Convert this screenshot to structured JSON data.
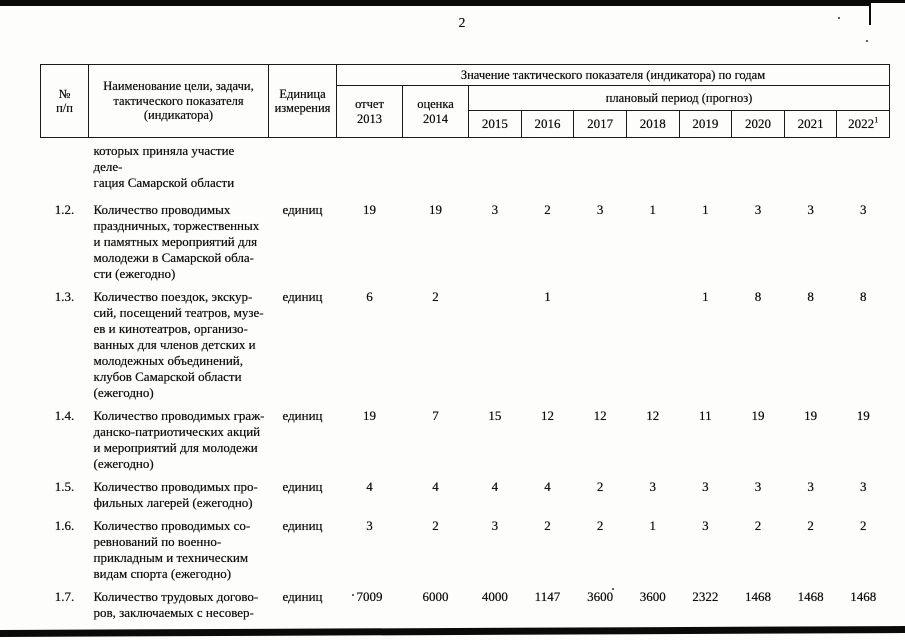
{
  "page": {
    "number": "2"
  },
  "table": {
    "header": {
      "num_lines": [
        "№",
        "п/п"
      ],
      "name_lines": [
        "Наименование цели, задачи,",
        "тактического показателя",
        "(индикатора)"
      ],
      "unit_lines": [
        "Единица",
        "измерения"
      ],
      "group": "Значение тактического показателя (индикатора) по годам",
      "report_lines": [
        "отчет",
        "2013"
      ],
      "estimate_lines": [
        "оценка",
        "2014"
      ],
      "plan_group": "плановый период (прогноз)",
      "years": [
        "2015",
        "2016",
        "2017",
        "2018",
        "2019",
        "2020",
        "2021",
        "2022"
      ],
      "last_year_footnote": "1"
    },
    "rows": [
      {
        "num": "",
        "name_lines": [
          "которых приняла участие деле-",
          "гация Самарской области"
        ],
        "unit": "",
        "values": [
          "",
          "",
          "",
          "",
          "",
          "",
          "",
          "",
          "",
          ""
        ]
      },
      {
        "num": "1.2.",
        "name_lines": [
          "Количество проводимых",
          "праздничных, торжественных",
          "и памятных мероприятий для",
          "молодежи в Самарской обла-",
          "сти (ежегодно)"
        ],
        "unit": "единиц",
        "values": [
          "19",
          "19",
          "3",
          "2",
          "3",
          "1",
          "1",
          "3",
          "3",
          "3"
        ]
      },
      {
        "num": "1.3.",
        "name_lines": [
          "Количество поездок, экскур-",
          "сий, посещений театров, музе-",
          "ев и кинотеатров, организо-",
          "ванных для членов детских и",
          "молодежных объединений,",
          "клубов Самарской области",
          "(ежегодно)"
        ],
        "unit": "единиц",
        "values": [
          "6",
          "2",
          "",
          "1",
          "",
          "",
          "1",
          "8",
          "8",
          "8"
        ]
      },
      {
        "num": "1.4.",
        "name_lines": [
          "Количество проводимых граж-",
          "данско-патриотических акций",
          "и мероприятий для молодежи",
          "(ежегодно)"
        ],
        "unit": "единиц",
        "values": [
          "19",
          "7",
          "15",
          "12",
          "12",
          "12",
          "11",
          "19",
          "19",
          "19"
        ]
      },
      {
        "num": "1.5.",
        "name_lines": [
          "Количество проводимых про-",
          "фильных лагерей (ежегодно)"
        ],
        "unit": "единиц",
        "values": [
          "4",
          "4",
          "4",
          "4",
          "2",
          "3",
          "3",
          "3",
          "3",
          "3"
        ]
      },
      {
        "num": "1.6.",
        "name_lines": [
          "Количество проводимых со-",
          "ревнований по военно-",
          "прикладным и техническим",
          "видам спорта (ежегодно)"
        ],
        "unit": "единиц",
        "values": [
          "3",
          "2",
          "3",
          "2",
          "2",
          "1",
          "3",
          "2",
          "2",
          "2"
        ]
      },
      {
        "num": "1.7.",
        "name_lines": [
          "Количество трудовых догово-",
          "ров, заключаемых с несовер-"
        ],
        "unit": "единиц",
        "values": [
          "7009",
          "6000",
          "4000",
          "1147",
          "3600",
          "3600",
          "2322",
          "1468",
          "1468",
          "1468"
        ]
      }
    ]
  }
}
